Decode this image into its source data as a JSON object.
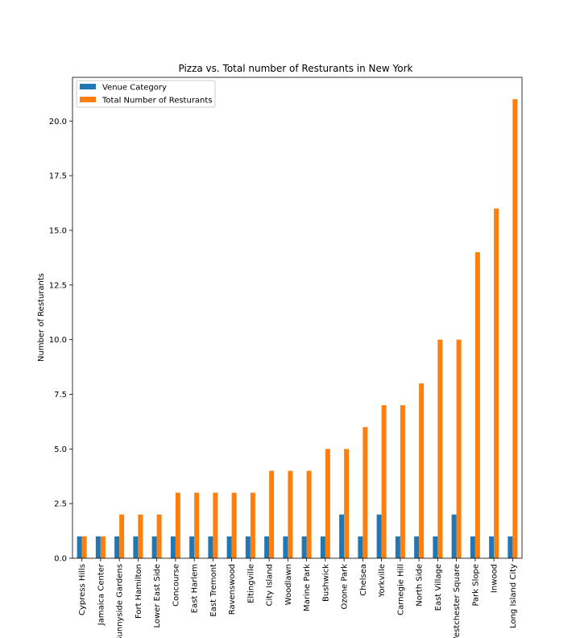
{
  "chart_data": {
    "type": "bar",
    "title": "Pizza vs. Total number of Resturants in New York",
    "xlabel": "",
    "ylabel": "Number of Resturants",
    "ylim": [
      0,
      22
    ],
    "yticks": [
      "0.0",
      "2.5",
      "5.0",
      "7.5",
      "10.0",
      "12.5",
      "15.0",
      "17.5",
      "20.0"
    ],
    "grid": false,
    "legend_position": "top-left",
    "categories": [
      "Cypress Hills",
      "Jamaica Center",
      "Sunnyside Gardens",
      "Fort Hamilton",
      "Lower East Side",
      "Concourse",
      "East Harlem",
      "East Tremont",
      "Ravenswood",
      "Eltingville",
      "City Island",
      "Woodlawn",
      "Marine Park",
      "Bushwick",
      "Ozone Park",
      "Chelsea",
      "Yorkville",
      "Carnegie Hill",
      "North Side",
      "East Village",
      "Westchester Square",
      "Park Slope",
      "Inwood",
      "Long Island City"
    ],
    "series": [
      {
        "name": "Venue Category",
        "color": "#1f77b4",
        "values": [
          1,
          1,
          1,
          1,
          1,
          1,
          1,
          1,
          1,
          1,
          1,
          1,
          1,
          1,
          2,
          1,
          2,
          1,
          1,
          1,
          2,
          1,
          1,
          1
        ]
      },
      {
        "name": "Total Number of Resturants",
        "color": "#ff7f0e",
        "values": [
          1,
          1,
          2,
          2,
          2,
          3,
          3,
          3,
          3,
          3,
          4,
          4,
          4,
          5,
          5,
          6,
          7,
          7,
          8,
          10,
          10,
          14,
          16,
          21
        ]
      }
    ]
  }
}
